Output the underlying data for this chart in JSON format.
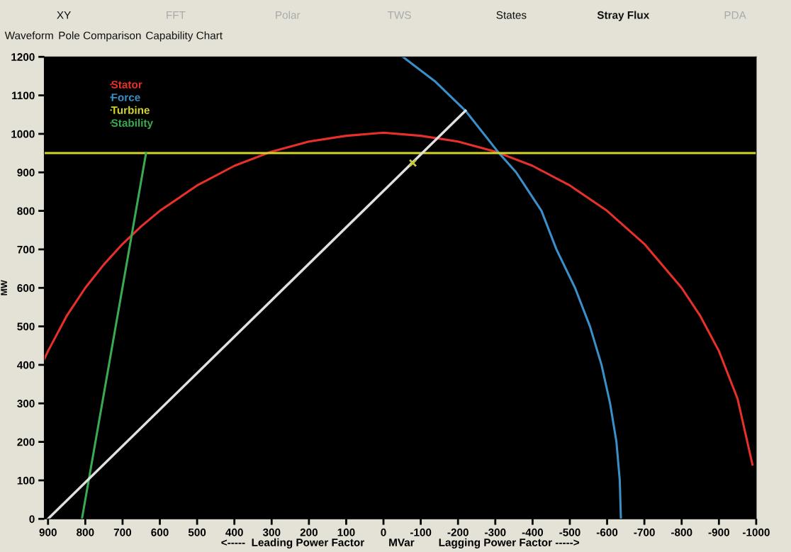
{
  "chart_data": {
    "type": "line",
    "xlabel": "<-----  Leading Power Factor        MVar        Lagging Power Factor ----->",
    "ylabel": "MW",
    "annotations": [
      "XY",
      "FFT",
      "Polar",
      "TWS",
      "States",
      "Stray Flux",
      "PDA",
      "Waveform",
      "Pole Comparison",
      "Capability Chart"
    ],
    "xlim": [
      910,
      -1000
    ],
    "ylim": [
      0,
      1200
    ],
    "xticks": [
      900,
      800,
      700,
      600,
      500,
      400,
      300,
      200,
      100,
      0,
      -100,
      -200,
      -300,
      -400,
      -500,
      -600,
      -700,
      -800,
      -900,
      -1000
    ],
    "yticks": [
      0,
      100,
      200,
      300,
      400,
      500,
      600,
      700,
      800,
      900,
      1000,
      1100,
      1200
    ],
    "grid": false,
    "legend": "top left",
    "marker": "none",
    "line_style": "solid",
    "series": [
      {
        "name": "Stator",
        "color": "#e8302a",
        "x": [
          910,
          900,
          850,
          800,
          750,
          700,
          650,
          600,
          500,
          400,
          300,
          200,
          100,
          0,
          -100,
          -200,
          -300,
          -400,
          -500,
          -600,
          -700,
          -800,
          -850,
          -900,
          -950,
          -990
        ],
        "values": [
          415,
          436,
          527,
          600,
          661,
          714,
          760,
          800,
          866,
          917,
          954,
          980,
          995,
          1003,
          995,
          980,
          954,
          917,
          866,
          800,
          714,
          600,
          527,
          436,
          312,
          141
        ]
      },
      {
        "name": "Force",
        "color": "#3a8fc8",
        "x": [
          -52,
          -140,
          -220,
          -310,
          -356,
          -424,
          -464,
          -514,
          -554,
          -585,
          -608,
          -625,
          -634,
          -637
        ],
        "values": [
          1200,
          1135,
          1060,
          950,
          900,
          800,
          700,
          600,
          500,
          400,
          300,
          200,
          100,
          0
        ]
      },
      {
        "name": "Turbine",
        "color": "#d4d42a",
        "x": [
          910,
          -1000
        ],
        "values": [
          950,
          950
        ]
      },
      {
        "name": "Stability",
        "color": "#3aaa50",
        "x": [
          809,
          637
        ],
        "values": [
          0,
          950
        ]
      },
      {
        "color": "#e0e0e0",
        "x": [
          900,
          -220
        ],
        "values": [
          0,
          1060
        ]
      },
      {
        "type": "scatter",
        "color": "#c8c840",
        "marker": "cross",
        "x": [
          -79
        ],
        "values": [
          924
        ]
      }
    ]
  }
}
